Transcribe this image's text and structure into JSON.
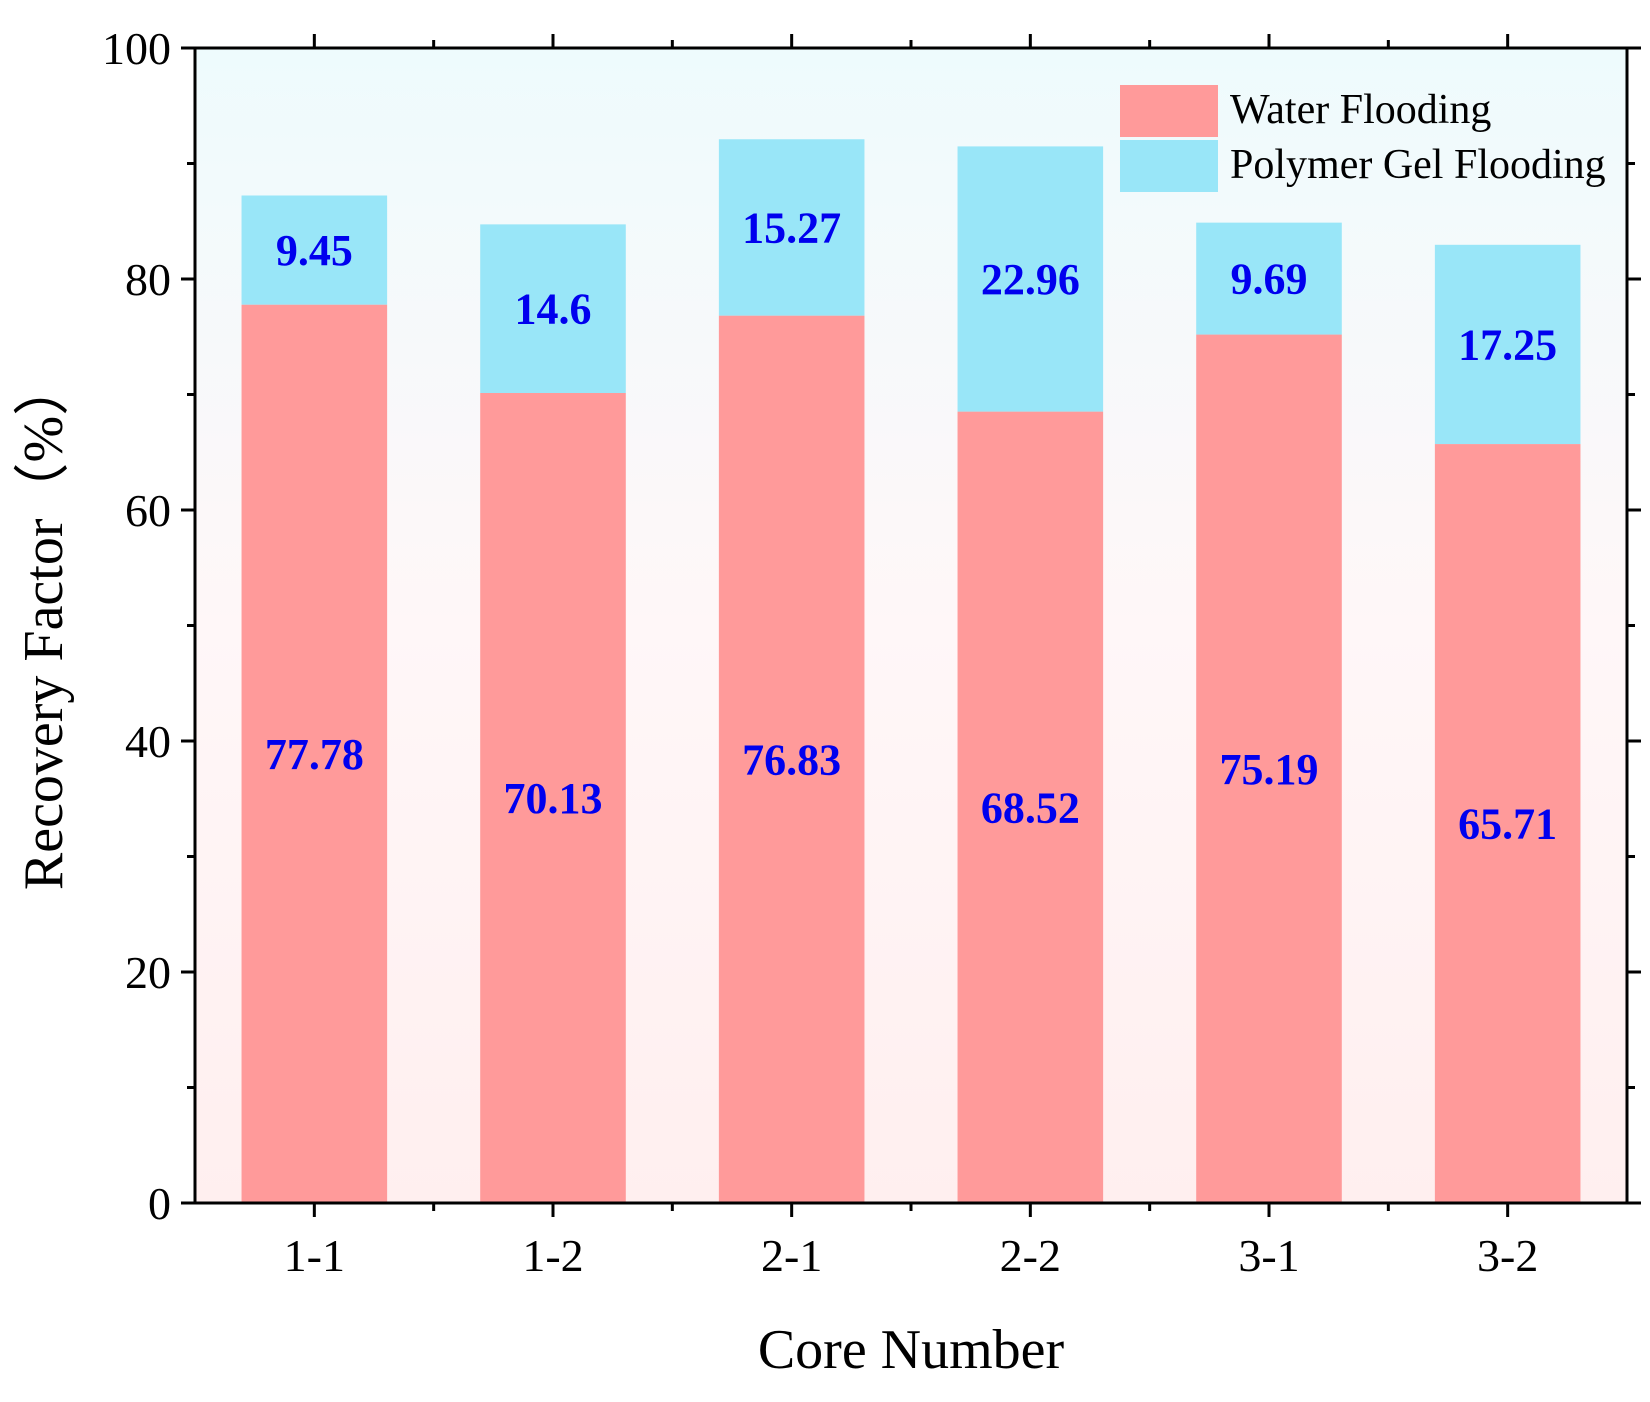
{
  "chart_data": {
    "type": "bar",
    "stacked": true,
    "title": "",
    "xlabel": "Core Number",
    "ylabel": "Recovery Factor（%）",
    "categories": [
      "1-1",
      "1-2",
      "2-1",
      "2-2",
      "3-1",
      "3-2"
    ],
    "series": [
      {
        "name": "Water Flooding",
        "color": "#FF9A9A",
        "values": [
          77.78,
          70.13,
          76.83,
          68.52,
          75.19,
          65.71
        ],
        "labels": [
          "77.78",
          "70.13",
          "76.83",
          "68.52",
          "75.19",
          "65.71"
        ]
      },
      {
        "name": "Polymer Gel Flooding",
        "color": "#99E6F8",
        "values": [
          9.45,
          14.6,
          15.27,
          22.96,
          9.69,
          17.25
        ],
        "labels": [
          "9.45",
          "14.6",
          "15.27",
          "22.96",
          "9.69",
          "17.25"
        ]
      }
    ],
    "ylim": [
      0,
      100
    ],
    "yticks": [
      "0",
      "20",
      "40",
      "60",
      "80",
      "100"
    ],
    "yticks_values": [
      0,
      20,
      40,
      60,
      80,
      100
    ],
    "data_label_color": "#0000EE",
    "legend_position": "top-right",
    "grid": false,
    "background_top_color": "#EEFBFD",
    "background_bottom_color": "#FFEFEF"
  }
}
